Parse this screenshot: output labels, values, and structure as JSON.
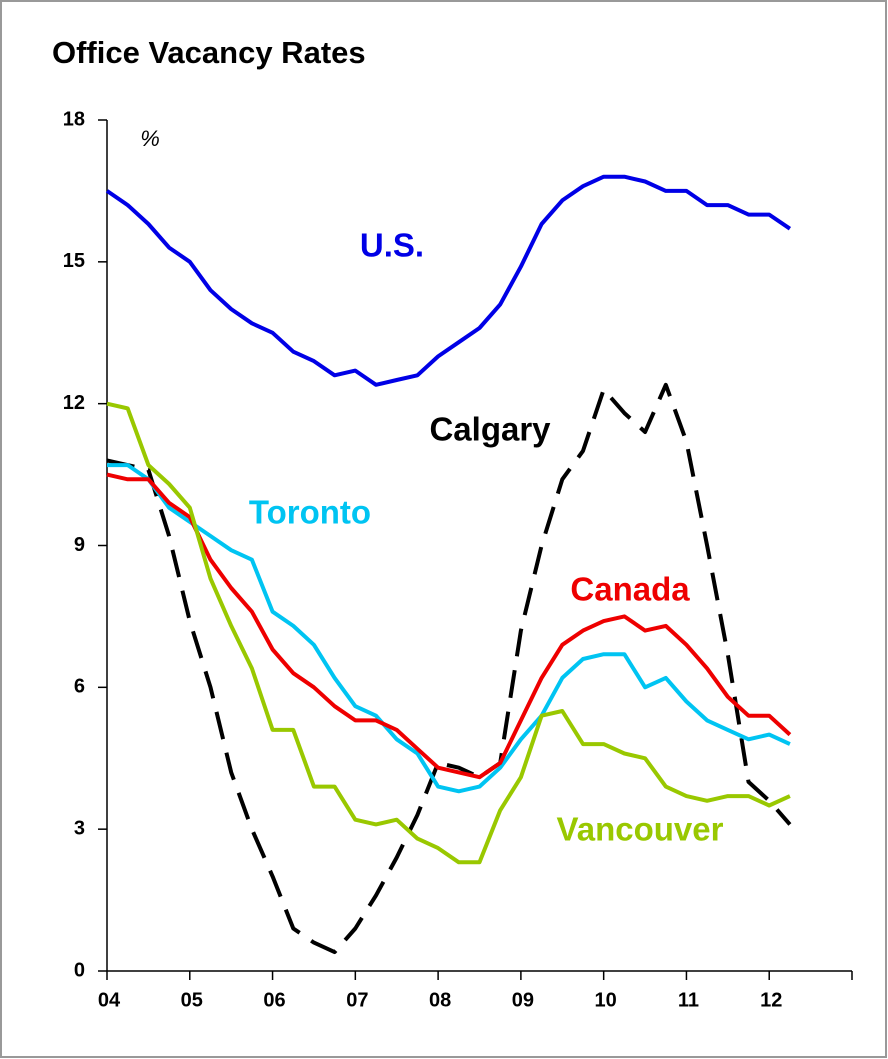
{
  "chart_data": {
    "type": "line",
    "title": "Office Vacancy Rates",
    "y_unit": "%",
    "x": [
      4,
      4.25,
      4.5,
      4.75,
      5,
      5.25,
      5.5,
      5.75,
      6,
      6.25,
      6.5,
      6.75,
      7,
      7.25,
      7.5,
      7.75,
      8,
      8.25,
      8.5,
      8.75,
      9,
      9.25,
      9.5,
      9.75,
      10,
      10.25,
      10.5,
      10.75,
      11,
      11.25,
      11.5,
      11.75,
      12,
      12.25
    ],
    "xlim": [
      4,
      13
    ],
    "xticks": [
      {
        "value": 4,
        "label": "04"
      },
      {
        "value": 5,
        "label": "05"
      },
      {
        "value": 6,
        "label": "06"
      },
      {
        "value": 7,
        "label": "07"
      },
      {
        "value": 8,
        "label": "08"
      },
      {
        "value": 9,
        "label": "09"
      },
      10,
      11,
      12
    ],
    "ylim": [
      0,
      18
    ],
    "yticks": [
      0,
      3,
      6,
      9,
      12,
      15,
      18
    ],
    "series": [
      {
        "name": "U.S.",
        "color": "#0000e6",
        "dashed": false,
        "values": [
          16.5,
          16.2,
          15.8,
          15.3,
          15.0,
          14.4,
          14.0,
          13.7,
          13.5,
          13.1,
          12.9,
          12.6,
          12.7,
          12.4,
          12.5,
          12.6,
          13.0,
          13.3,
          13.6,
          14.1,
          14.9,
          15.8,
          16.3,
          16.6,
          16.8,
          16.8,
          16.7,
          16.5,
          16.5,
          16.2,
          16.2,
          16.0,
          16.0,
          15.7
        ]
      },
      {
        "name": "Calgary",
        "color": "#000000",
        "dashed": true,
        "values": [
          10.8,
          10.7,
          10.6,
          9.2,
          7.4,
          6.0,
          4.2,
          3.0,
          2.0,
          0.9,
          0.6,
          0.4,
          0.9,
          1.6,
          2.4,
          3.3,
          4.4,
          4.3,
          4.1,
          4.4,
          7.2,
          9.0,
          10.4,
          11.0,
          12.3,
          11.8,
          11.4,
          12.4,
          11.2,
          9.0,
          6.7,
          4.0,
          3.6,
          3.1
        ]
      },
      {
        "name": "Toronto",
        "color": "#00c4f2",
        "dashed": false,
        "values": [
          10.7,
          10.7,
          10.4,
          9.8,
          9.5,
          9.2,
          8.9,
          8.7,
          7.6,
          7.3,
          6.9,
          6.2,
          5.6,
          5.4,
          4.9,
          4.6,
          3.9,
          3.8,
          3.9,
          4.3,
          4.9,
          5.4,
          6.2,
          6.6,
          6.7,
          6.7,
          6.0,
          6.2,
          5.7,
          5.3,
          5.1,
          4.9,
          5.0,
          4.8
        ]
      },
      {
        "name": "Canada",
        "color": "#ee0000",
        "dashed": false,
        "values": [
          10.5,
          10.4,
          10.4,
          9.9,
          9.6,
          8.7,
          8.1,
          7.6,
          6.8,
          6.3,
          6.0,
          5.6,
          5.3,
          5.3,
          5.1,
          4.7,
          4.3,
          4.2,
          4.1,
          4.4,
          5.3,
          6.2,
          6.9,
          7.2,
          7.4,
          7.5,
          7.2,
          7.3,
          6.9,
          6.4,
          5.8,
          5.4,
          5.4,
          5.0
        ]
      },
      {
        "name": "Vancouver",
        "color": "#99c800",
        "dashed": false,
        "values": [
          12.0,
          11.9,
          10.7,
          10.3,
          9.8,
          8.3,
          7.3,
          6.4,
          5.1,
          5.1,
          3.9,
          3.9,
          3.2,
          3.1,
          3.2,
          2.8,
          2.6,
          2.3,
          2.3,
          3.4,
          4.1,
          5.4,
          5.5,
          4.8,
          4.8,
          4.6,
          4.5,
          3.9,
          3.7,
          3.6,
          3.7,
          3.7,
          3.5,
          3.7
        ]
      }
    ]
  }
}
